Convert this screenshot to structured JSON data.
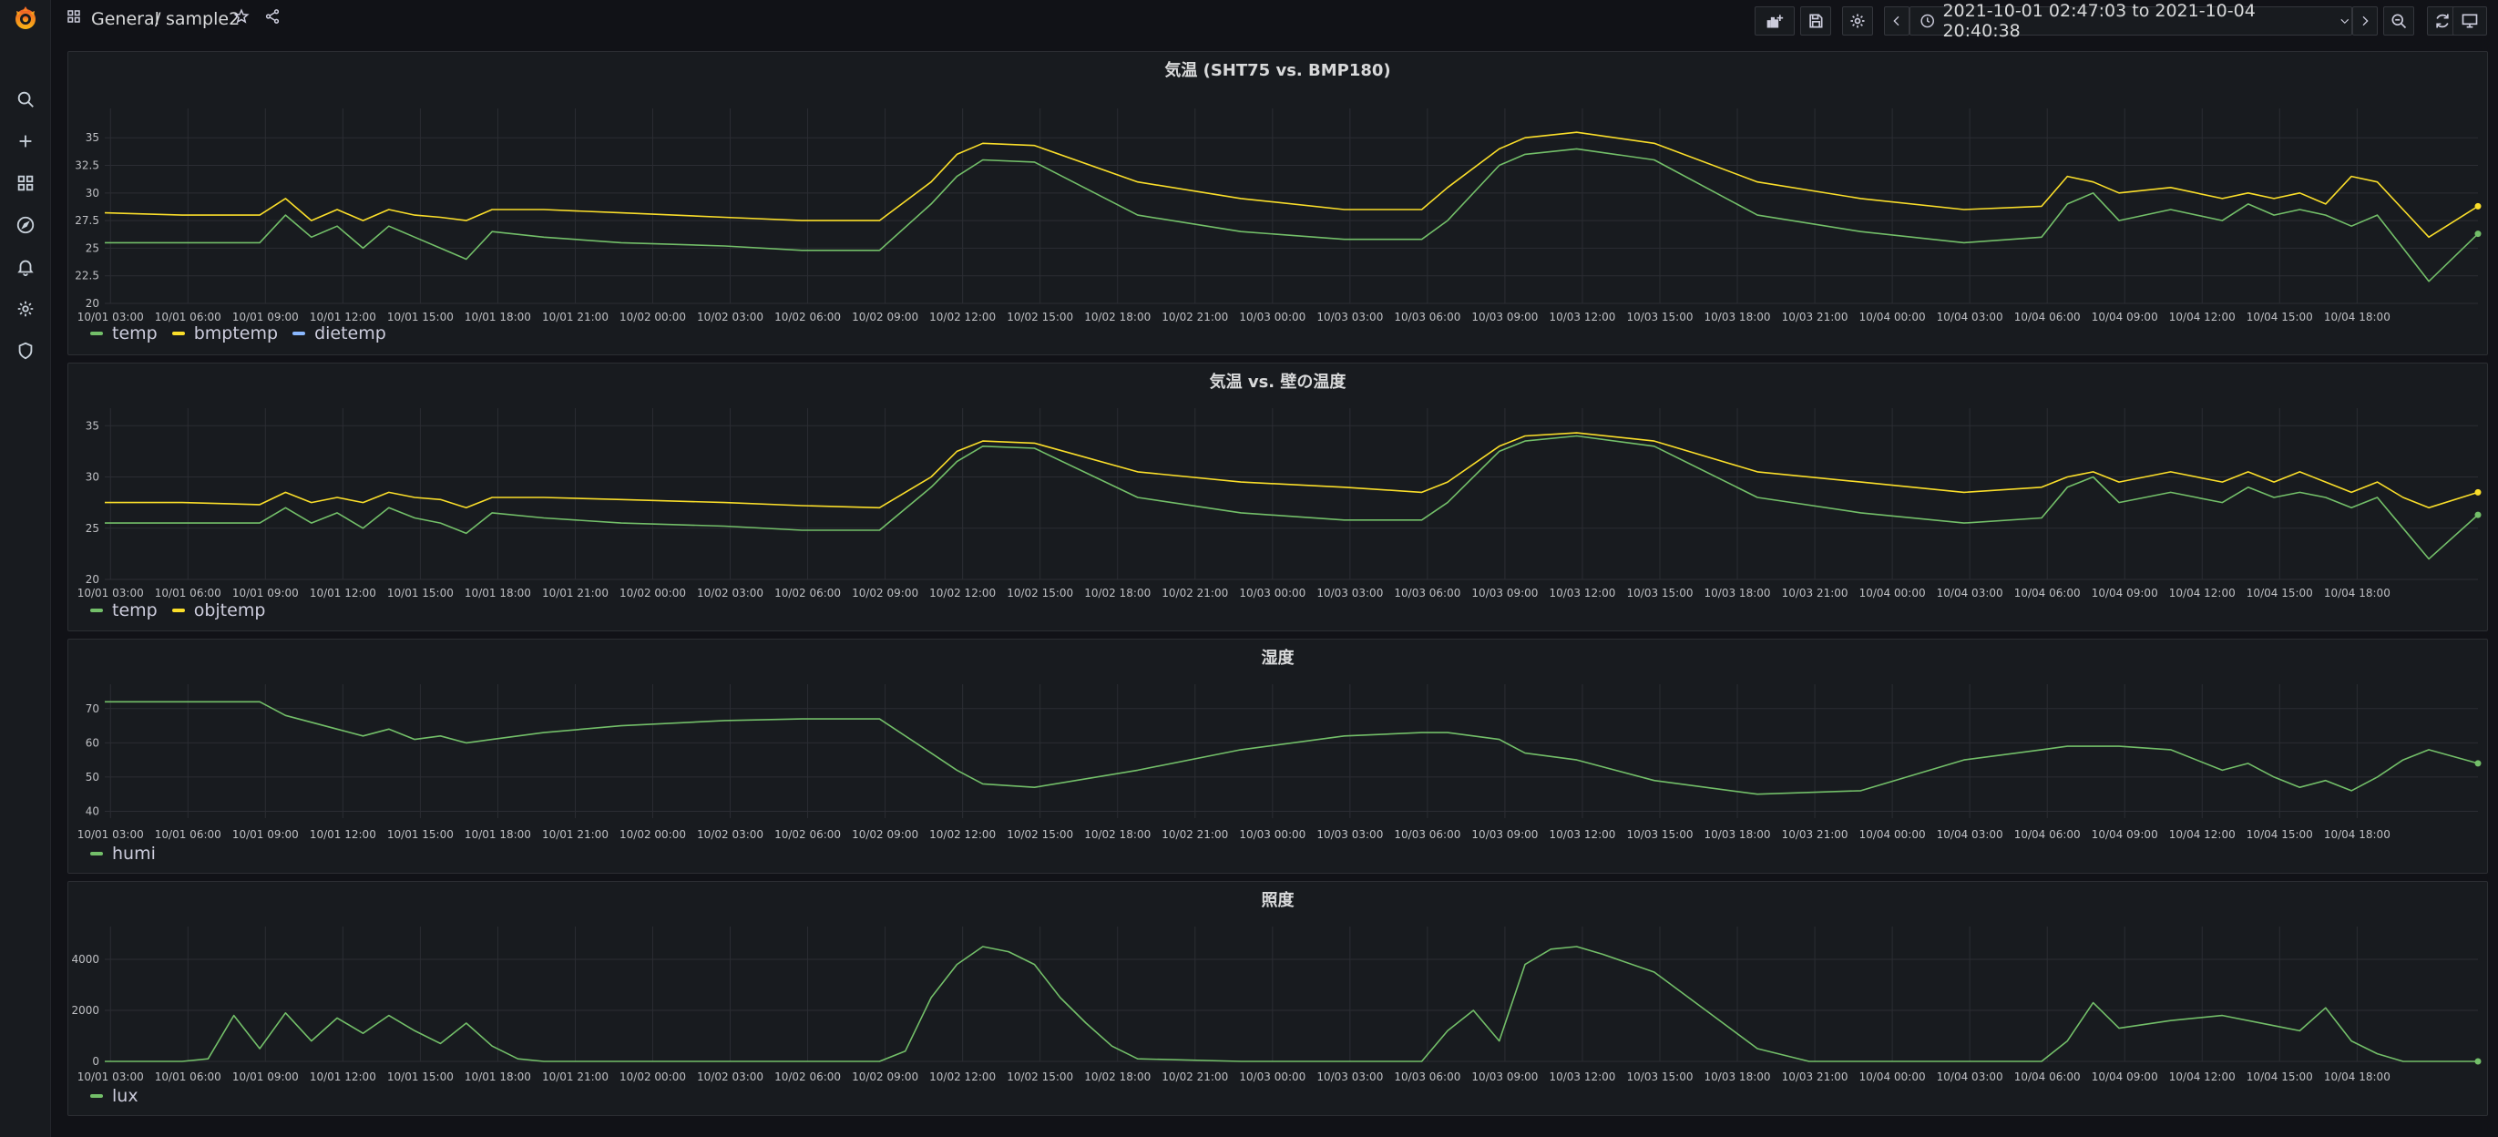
{
  "topbar": {
    "breadcrumb_folder": "General",
    "breadcrumb_separator": "/",
    "dashboard_title": "sample2",
    "time_range": "2021-10-01 02:47:03 to 2021-10-04 20:40:38"
  },
  "sidebar": {
    "items": [
      "search",
      "create",
      "dashboards",
      "explore",
      "alerting",
      "configuration",
      "server-admin"
    ]
  },
  "colors": {
    "green": "#73bf69",
    "yellow": "#fade2a",
    "blue": "#8ab8ff",
    "grid": "#2b2d33",
    "bg": "#181b1f"
  },
  "x_ticks": [
    "10/01 03:00",
    "10/01 06:00",
    "10/01 09:00",
    "10/01 12:00",
    "10/01 15:00",
    "10/01 18:00",
    "10/01 21:00",
    "10/02 00:00",
    "10/02 03:00",
    "10/02 06:00",
    "10/02 09:00",
    "10/02 12:00",
    "10/02 15:00",
    "10/02 18:00",
    "10/02 21:00",
    "10/03 00:00",
    "10/03 03:00",
    "10/03 06:00",
    "10/03 09:00",
    "10/03 12:00",
    "10/03 15:00",
    "10/03 18:00",
    "10/03 21:00",
    "10/04 00:00",
    "10/04 03:00",
    "10/04 06:00",
    "10/04 09:00",
    "10/04 12:00",
    "10/04 15:00",
    "10/04 18:00"
  ],
  "chart_data": [
    {
      "type": "line",
      "title": "気温 (SHT75 vs. BMP180)",
      "yticks": [
        "20",
        "22.5",
        "25",
        "27.5",
        "30",
        "32.5",
        "35"
      ],
      "ylim": [
        20,
        37
      ],
      "x_hours": [
        0,
        3,
        6,
        7,
        8,
        9,
        10,
        11,
        12,
        13,
        14,
        15,
        17,
        20,
        24,
        27,
        30,
        32,
        33,
        34,
        36,
        40,
        44,
        48,
        51,
        52,
        54,
        55,
        57,
        60,
        64,
        68,
        72,
        75,
        76,
        77,
        78,
        80,
        82,
        83,
        84,
        85,
        86,
        87,
        88,
        89,
        90,
        91.9
      ],
      "series": [
        {
          "name": "temp",
          "color": "#73bf69",
          "values": [
            25.5,
            25.5,
            25.5,
            28,
            26,
            27,
            25,
            27,
            26,
            25,
            24,
            26.5,
            26,
            25.5,
            25.2,
            24.8,
            24.8,
            29,
            31.5,
            33,
            32.8,
            28,
            26.5,
            25.8,
            25.8,
            27.5,
            32.5,
            33.5,
            34,
            33,
            28,
            26.5,
            25.5,
            26,
            29,
            30,
            27.5,
            28.5,
            27.5,
            29,
            28,
            28.5,
            28,
            27,
            28,
            25,
            22,
            26.3
          ]
        },
        {
          "name": "bmptemp",
          "color": "#fade2a",
          "values": [
            28.2,
            28,
            28,
            29.5,
            27.5,
            28.5,
            27.5,
            28.5,
            28,
            27.8,
            27.5,
            28.5,
            28.5,
            28.2,
            27.8,
            27.5,
            27.5,
            31,
            33.5,
            34.5,
            34.3,
            31,
            29.5,
            28.5,
            28.5,
            30.5,
            34,
            35,
            35.5,
            34.5,
            31,
            29.5,
            28.5,
            28.8,
            31.5,
            31,
            30,
            30.5,
            29.5,
            30,
            29.5,
            30,
            29,
            31.5,
            31,
            28.5,
            26,
            28.8
          ]
        },
        {
          "name": "dietemp",
          "color": "#8ab8ff",
          "values": []
        }
      ]
    },
    {
      "type": "line",
      "title": "気温 vs. 壁の温度",
      "yticks": [
        "20",
        "25",
        "30",
        "35"
      ],
      "ylim": [
        20,
        36
      ],
      "x_hours": [
        0,
        3,
        6,
        7,
        8,
        9,
        10,
        11,
        12,
        13,
        14,
        15,
        17,
        20,
        24,
        27,
        30,
        32,
        33,
        34,
        36,
        40,
        44,
        48,
        51,
        52,
        54,
        55,
        57,
        60,
        64,
        68,
        72,
        75,
        76,
        77,
        78,
        80,
        82,
        83,
        84,
        85,
        86,
        87,
        88,
        89,
        90,
        91.9
      ],
      "series": [
        {
          "name": "temp",
          "color": "#73bf69",
          "values": [
            25.5,
            25.5,
            25.5,
            27,
            25.5,
            26.5,
            25,
            27,
            26,
            25.5,
            24.5,
            26.5,
            26,
            25.5,
            25.2,
            24.8,
            24.8,
            29,
            31.5,
            33,
            32.8,
            28,
            26.5,
            25.8,
            25.8,
            27.5,
            32.5,
            33.5,
            34,
            33,
            28,
            26.5,
            25.5,
            26,
            29,
            30,
            27.5,
            28.5,
            27.5,
            29,
            28,
            28.5,
            28,
            27,
            28,
            25,
            22,
            26.3
          ]
        },
        {
          "name": "objtemp",
          "color": "#fade2a",
          "values": [
            27.5,
            27.5,
            27.3,
            28.5,
            27.5,
            28,
            27.5,
            28.5,
            28,
            27.8,
            27,
            28,
            28,
            27.8,
            27.5,
            27.2,
            27,
            30,
            32.5,
            33.5,
            33.3,
            30.5,
            29.5,
            29,
            28.5,
            29.5,
            33,
            34,
            34.3,
            33.5,
            30.5,
            29.5,
            28.5,
            29,
            30,
            30.5,
            29.5,
            30.5,
            29.5,
            30.5,
            29.5,
            30.5,
            29.5,
            28.5,
            29.5,
            28,
            27,
            28.5
          ]
        }
      ]
    },
    {
      "type": "line",
      "title": "湿度",
      "yticks": [
        "40",
        "50",
        "60",
        "70"
      ],
      "ylim": [
        38,
        75
      ],
      "x_hours": [
        0,
        3,
        6,
        7,
        8,
        9,
        10,
        11,
        12,
        13,
        14,
        15,
        17,
        20,
        24,
        27,
        30,
        32,
        33,
        34,
        36,
        40,
        44,
        48,
        51,
        52,
        54,
        55,
        57,
        60,
        64,
        68,
        72,
        75,
        76,
        77,
        78,
        80,
        82,
        83,
        84,
        85,
        86,
        87,
        88,
        89,
        90,
        91.9
      ],
      "series": [
        {
          "name": "humi",
          "color": "#73bf69",
          "values": [
            72,
            72,
            72,
            68,
            66,
            64,
            62,
            64,
            61,
            62,
            60,
            61,
            63,
            65,
            66.5,
            67,
            67,
            57,
            52,
            48,
            47,
            52,
            58,
            62,
            63,
            63,
            61,
            57,
            55,
            49,
            45,
            46,
            55,
            58,
            59,
            59,
            59,
            58,
            52,
            54,
            50,
            47,
            49,
            46,
            50,
            55,
            58,
            54
          ]
        }
      ]
    },
    {
      "type": "line",
      "title": "照度",
      "yticks": [
        "0",
        "2000",
        "4000"
      ],
      "ylim": [
        0,
        5000
      ],
      "x_hours": [
        0,
        3,
        4,
        5,
        6,
        7,
        8,
        9,
        10,
        11,
        12,
        13,
        14,
        15,
        16,
        17,
        20,
        24,
        27,
        30,
        31,
        32,
        33,
        34,
        35,
        36,
        37,
        38,
        39,
        40,
        44,
        48,
        51,
        52,
        53,
        54,
        55,
        56,
        57,
        58,
        60,
        62,
        64,
        66,
        68,
        72,
        75,
        76,
        77,
        78,
        80,
        82,
        84,
        85,
        86,
        87,
        88,
        89,
        90,
        91.9
      ],
      "series": [
        {
          "name": "lux",
          "color": "#73bf69",
          "values": [
            0,
            0,
            100,
            1800,
            500,
            1900,
            800,
            1700,
            1100,
            1800,
            1200,
            700,
            1500,
            600,
            100,
            0,
            0,
            0,
            0,
            0,
            400,
            2500,
            3800,
            4500,
            4300,
            3800,
            2500,
            1500,
            600,
            100,
            0,
            0,
            0,
            1200,
            2000,
            800,
            3800,
            4400,
            4500,
            4200,
            3500,
            2000,
            500,
            0,
            0,
            0,
            0,
            800,
            2300,
            1300,
            1600,
            1800,
            1400,
            1200,
            2100,
            800,
            300,
            0,
            0,
            0
          ]
        }
      ]
    }
  ]
}
